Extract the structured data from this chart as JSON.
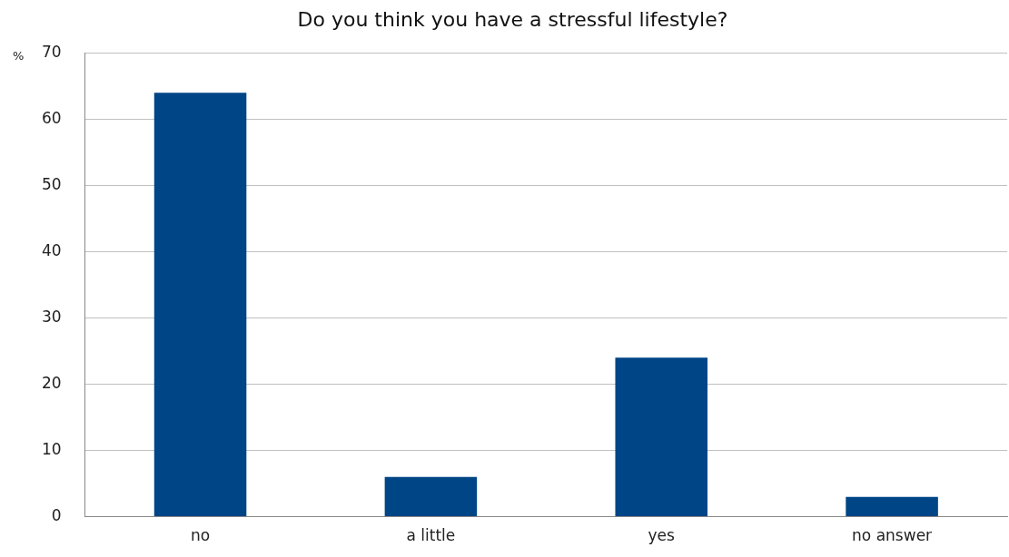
{
  "chart_data": {
    "type": "bar",
    "title": "Do you think you have a stressful lifestyle?",
    "ylabel": "%",
    "categories": [
      "no",
      "a little",
      "yes",
      "no answer"
    ],
    "values": [
      64,
      6,
      24,
      3
    ],
    "color": "#004586",
    "ylim": [
      0,
      70
    ],
    "yticks": [
      0,
      10,
      20,
      30,
      40,
      50,
      60,
      70
    ],
    "grid": "y"
  }
}
